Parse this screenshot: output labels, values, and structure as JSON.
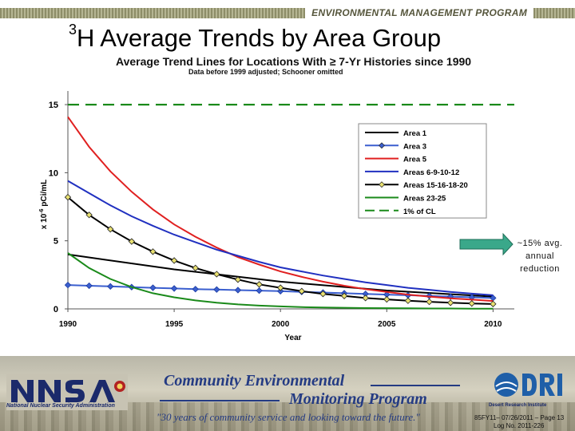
{
  "header": {
    "program_label": "ENVIRONMENTAL MANAGEMENT PROGRAM"
  },
  "slide": {
    "title_sup": "3",
    "title_main": "H Average Trends by Area Group"
  },
  "chart_data": {
    "type": "line",
    "title": "Average Trend Lines for Locations With ≥ 7-Yr Histories since 1990",
    "subtitle": "Data before 1999 adjusted; Schooner omitted",
    "xlabel": "Year",
    "ylabel_base": "x 10",
    "ylabel_exp": "-6",
    "ylabel_unit": " pCi/mL",
    "xlim": [
      1990,
      2011
    ],
    "ylim": [
      0,
      16
    ],
    "x_ticks": [
      1990,
      1995,
      2000,
      2005,
      2010
    ],
    "y_ticks": [
      0,
      5,
      10,
      15
    ],
    "legend_position": "right",
    "series": [
      {
        "name": "Area 1",
        "color": "#000000",
        "style": "solid",
        "marker": "none",
        "x": [
          1990,
          1995,
          2000,
          2005,
          2010
        ],
        "y": [
          4.0,
          2.9,
          2.0,
          1.35,
          0.9
        ]
      },
      {
        "name": "Area 3",
        "color": "#3b5fcf",
        "style": "solid",
        "marker": "diamond-blue",
        "x": [
          1990,
          1991,
          1992,
          1993,
          1994,
          1995,
          1996,
          1997,
          1998,
          1999,
          2000,
          2001,
          2002,
          2003,
          2004,
          2005,
          2006,
          2007,
          2008,
          2009,
          2010
        ],
        "y": [
          1.75,
          1.7,
          1.65,
          1.6,
          1.55,
          1.5,
          1.45,
          1.42,
          1.38,
          1.34,
          1.3,
          1.25,
          1.2,
          1.15,
          1.1,
          1.05,
          1.0,
          0.95,
          0.9,
          0.85,
          0.8
        ]
      },
      {
        "name": "Area 5",
        "color": "#e02020",
        "style": "solid",
        "marker": "none",
        "x": [
          1990,
          1991,
          1992,
          1993,
          1994,
          1995,
          1996,
          1997,
          1998,
          1999,
          2000,
          2001,
          2002,
          2003,
          2004,
          2005,
          2006,
          2007,
          2008,
          2009,
          2010
        ],
        "y": [
          14.1,
          11.9,
          10.1,
          8.6,
          7.3,
          6.2,
          5.3,
          4.5,
          3.8,
          3.25,
          2.75,
          2.35,
          2.0,
          1.7,
          1.45,
          1.25,
          1.05,
          0.9,
          0.78,
          0.68,
          0.58
        ]
      },
      {
        "name": "Areas 6-9-10-12",
        "color": "#2030c0",
        "style": "solid",
        "marker": "none",
        "x": [
          1990,
          1991,
          1992,
          1993,
          1994,
          1995,
          1996,
          1997,
          1998,
          1999,
          2000,
          2001,
          2002,
          2003,
          2004,
          2005,
          2006,
          2007,
          2008,
          2009,
          2010
        ],
        "y": [
          9.4,
          8.5,
          7.6,
          6.8,
          6.1,
          5.45,
          4.9,
          4.35,
          3.9,
          3.45,
          3.05,
          2.75,
          2.45,
          2.2,
          1.95,
          1.75,
          1.55,
          1.4,
          1.25,
          1.12,
          1.0
        ]
      },
      {
        "name": "Areas 15-16-18-20",
        "color": "#000000",
        "style": "solid",
        "marker": "diamond-yellow",
        "x": [
          1990,
          1991,
          1992,
          1993,
          1994,
          1995,
          1996,
          1997,
          1998,
          1999,
          2000,
          2001,
          2002,
          2003,
          2004,
          2005,
          2006,
          2007,
          2008,
          2009,
          2010
        ],
        "y": [
          8.2,
          6.9,
          5.85,
          4.95,
          4.2,
          3.55,
          3.0,
          2.55,
          2.15,
          1.8,
          1.55,
          1.3,
          1.1,
          0.95,
          0.8,
          0.7,
          0.6,
          0.52,
          0.45,
          0.4,
          0.36
        ]
      },
      {
        "name": "Areas 23-25",
        "color": "#1a8a1a",
        "style": "solid",
        "marker": "none",
        "x": [
          1990,
          1991,
          1992,
          1993,
          1994,
          1995,
          1996,
          1997,
          1998,
          1999,
          2000,
          2001,
          2002,
          2003,
          2004,
          2005,
          2006,
          2007,
          2008,
          2009,
          2010
        ],
        "y": [
          4.1,
          3.0,
          2.2,
          1.6,
          1.15,
          0.85,
          0.62,
          0.45,
          0.33,
          0.24,
          0.18,
          0.13,
          0.1,
          0.08,
          0.06,
          0.05,
          0.04,
          0.03,
          0.03,
          0.02,
          0.02
        ]
      },
      {
        "name": "1% of CL",
        "color": "#1a8a1a",
        "style": "dashed",
        "marker": "none",
        "x": [
          1990,
          2011
        ],
        "y": [
          15,
          15
        ]
      }
    ]
  },
  "annotation": {
    "line1": "~15% avg.",
    "line2": "annual",
    "line3": "reduction"
  },
  "footer": {
    "nnsa_caption": "National Nuclear Security Administration",
    "cemp_line1": "Community Environmental",
    "cemp_line2": "Monitoring Program",
    "tagline": "\"30 years of community service and looking toward the future.\"",
    "dri_caption": "Desert Research Institute",
    "doc_ref_line1": "85FY11– 07/26/2011 – Page 13",
    "doc_ref_line2": "Log No. 2011-226"
  },
  "colors": {
    "navy": "#243b83",
    "annotation_arrow": "#3aa88a"
  }
}
